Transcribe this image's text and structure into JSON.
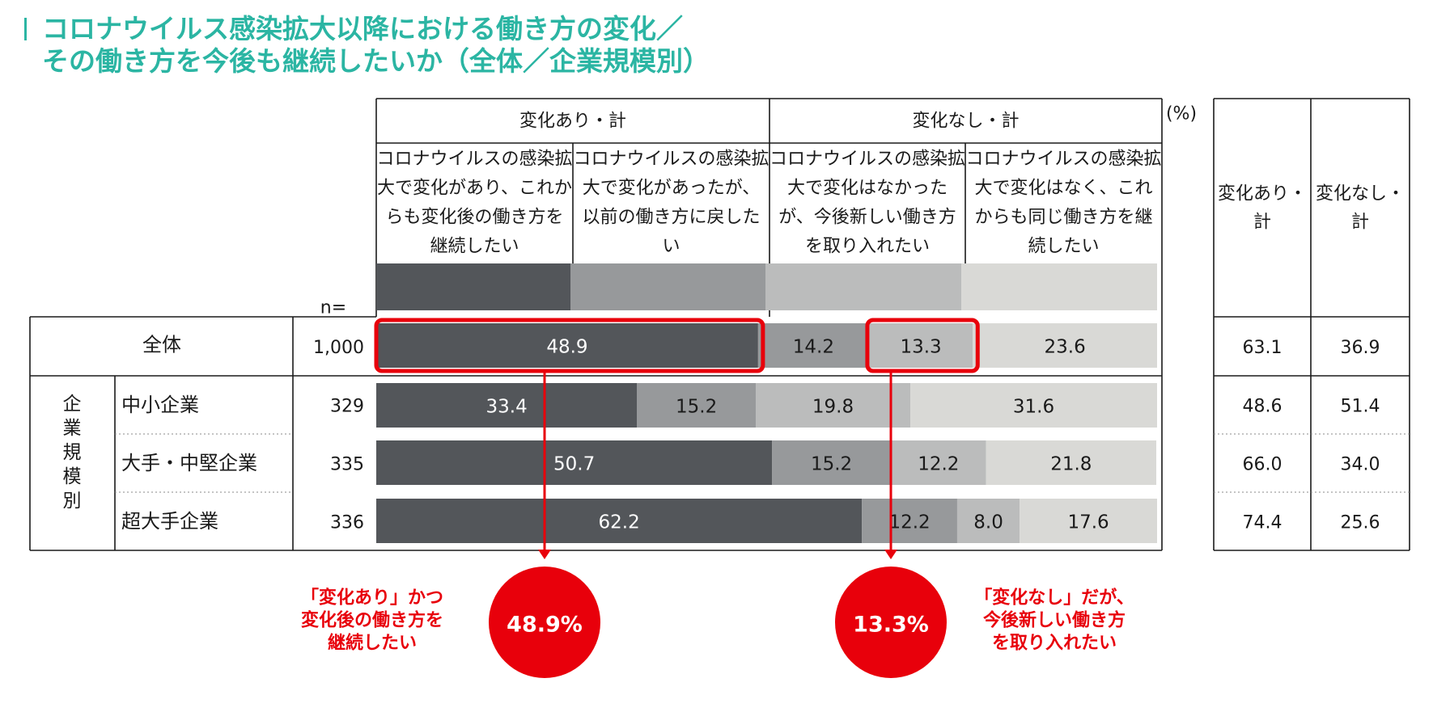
{
  "title": {
    "line1": "コロナウイルス感染拡大以降における働き方の変化／",
    "line2": "その働き方を今後も継続したいか（全体／企業規模別）"
  },
  "chart_data": {
    "type": "bar",
    "orientation": "horizontal-stacked-100",
    "unit_label": "(%)",
    "n_label": "n=",
    "group_headers": [
      "変化あり・計",
      "変化なし・計"
    ],
    "legend": [
      {
        "name": "コロナウイルスの感染拡大で変化があり、これからも変化後の働き方を継続したい",
        "lines": [
          "コロナウイルスの感染拡",
          "大で変化があり、これか",
          "らも変化後の働き方を",
          "継続したい"
        ],
        "color": "#53565a"
      },
      {
        "name": "コロナウイルスの感染拡大で変化があったが、以前の働き方に戻したい",
        "lines": [
          "コロナウイルスの感染拡",
          "大で変化があったが、",
          "以前の働き方に戻した",
          "い"
        ],
        "color": "#97999b"
      },
      {
        "name": "コロナウイルスの感染拡大で変化はなかったが、今後新しい働き方を取り入れたい",
        "lines": [
          "コロナウイルスの感染拡",
          "大で変化はなかった",
          "が、今後新しい働き方",
          "を取り入れたい"
        ],
        "color": "#bbbcbc"
      },
      {
        "name": "コロナウイルスの感染拡大で変化はなく、これからも同じ働き方を継続したい",
        "lines": [
          "コロナウイルスの感染拡",
          "大で変化はなく、これ",
          "からも同じ働き方を継",
          "続したい"
        ],
        "color": "#d9d9d6"
      }
    ],
    "segment_label_color": [
      "#ffffff",
      "#1a1a1a",
      "#1a1a1a",
      "#1a1a1a"
    ],
    "category_group": "企業規模別",
    "rows": [
      {
        "label": "全体",
        "n": "1,000",
        "values": [
          48.9,
          14.2,
          13.3,
          23.6
        ],
        "labels": [
          "48.9",
          "14.2",
          "13.3",
          "23.6"
        ],
        "total_change": "63.1",
        "total_nochange": "36.9"
      },
      {
        "label": "中小企業",
        "n": "329",
        "values": [
          33.4,
          15.2,
          19.8,
          31.6
        ],
        "labels": [
          "33.4",
          "15.2",
          "19.8",
          "31.6"
        ],
        "total_change": "48.6",
        "total_nochange": "51.4"
      },
      {
        "label": "大手・中堅企業",
        "n": "335",
        "values": [
          50.7,
          15.2,
          12.2,
          21.8
        ],
        "labels": [
          "50.7",
          "15.2",
          "12.2",
          "21.8"
        ],
        "total_change": "66.0",
        "total_nochange": "34.0"
      },
      {
        "label": "超大手企業",
        "n": "336",
        "values": [
          62.2,
          12.2,
          8.0,
          17.6
        ],
        "labels": [
          "62.2",
          "12.2",
          "8.0",
          "17.6"
        ],
        "total_change": "74.4",
        "total_nochange": "25.6"
      }
    ],
    "right_table_headers": [
      [
        "変化あり・",
        "計"
      ],
      [
        "変化なし・",
        "計"
      ]
    ],
    "callouts": [
      {
        "value": "48.9%",
        "lines": [
          "「変化あり」かつ",
          "変化後の働き方を",
          "継続したい"
        ],
        "row": 0,
        "from_segment": 0,
        "to_segment": 0
      },
      {
        "value": "13.3%",
        "lines": [
          "「変化なし」だが、",
          "今後新しい働き方",
          "を取り入れたい"
        ],
        "row": 0,
        "from_segment": 2,
        "to_segment": 2
      }
    ],
    "accent_color": "#e8000b"
  }
}
